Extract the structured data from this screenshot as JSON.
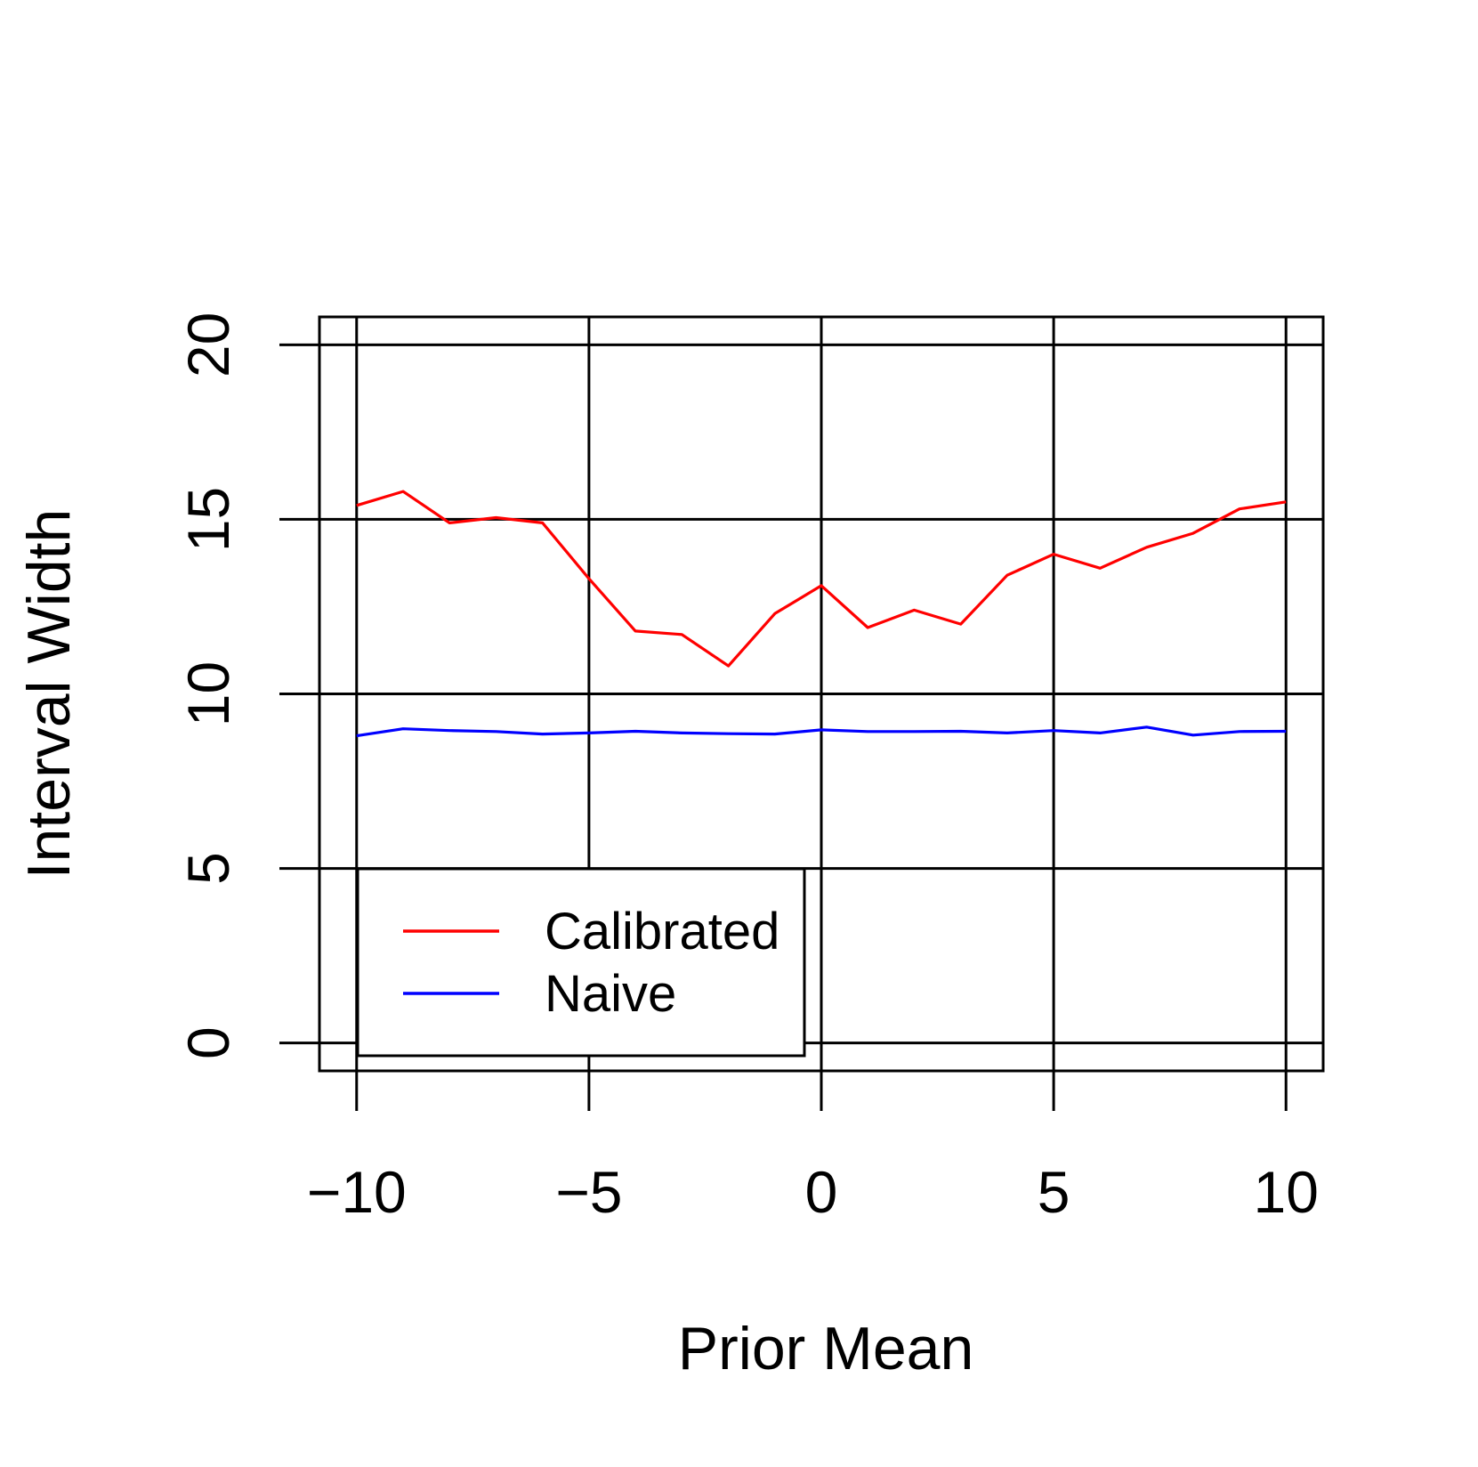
{
  "chart_data": {
    "type": "line",
    "title": "",
    "xlabel": "Prior Mean",
    "ylabel": "Interval Width",
    "xlim": [
      -10.8,
      10.8
    ],
    "ylim": [
      -0.8,
      20.8
    ],
    "x_ticks": [
      -10,
      -5,
      0,
      5,
      10
    ],
    "x_tick_labels": [
      "−10",
      "−5",
      "0",
      "5",
      "10"
    ],
    "y_ticks": [
      0,
      5,
      10,
      15,
      20
    ],
    "y_tick_labels": [
      "0",
      "5",
      "10",
      "15",
      "20"
    ],
    "grid": true,
    "legend_position": "bottom-left",
    "x": [
      -10,
      -9,
      -8,
      -7,
      -6,
      -5,
      -4,
      -3,
      -2,
      -1,
      0,
      1,
      2,
      3,
      4,
      5,
      6,
      7,
      8,
      9,
      10
    ],
    "series": [
      {
        "name": "Calibrated",
        "color": "#ff0000",
        "values": [
          15.4,
          15.8,
          14.9,
          15.05,
          14.9,
          13.3,
          11.8,
          11.7,
          10.8,
          12.3,
          13.1,
          11.9,
          12.4,
          12.0,
          13.4,
          14.0,
          13.6,
          14.2,
          14.6,
          15.3,
          15.5
        ]
      },
      {
        "name": "Naive",
        "color": "#0000ff",
        "values": [
          8.8,
          9.0,
          8.95,
          8.92,
          8.85,
          8.88,
          8.93,
          8.88,
          8.86,
          8.85,
          8.97,
          8.92,
          8.92,
          8.93,
          8.88,
          8.95,
          8.88,
          9.05,
          8.82,
          8.92,
          8.93
        ]
      }
    ]
  }
}
